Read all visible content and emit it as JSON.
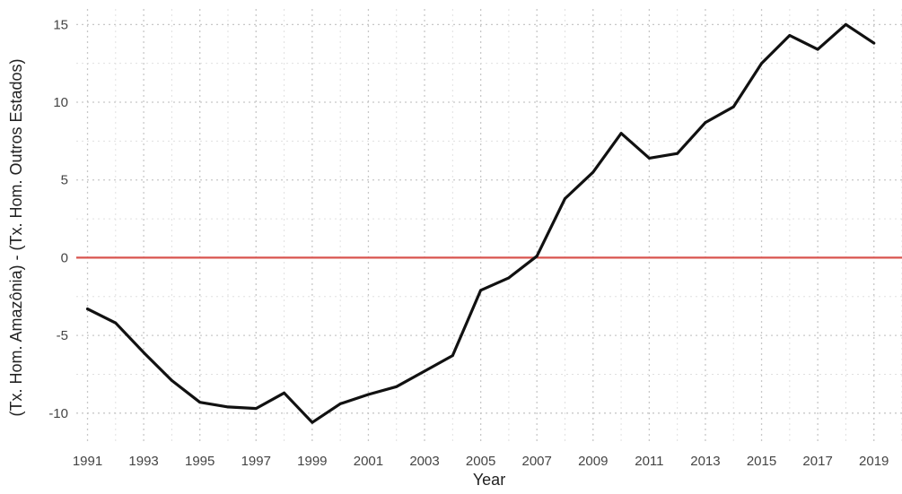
{
  "chart_data": {
    "type": "line",
    "title": "",
    "xlabel": "Year",
    "ylabel": "(Tx. Hom. Amazônia) - (Tx. Hom. Outros Estados)",
    "xlim": [
      1990.6,
      2020.0
    ],
    "ylim": [
      -11.8,
      16.0
    ],
    "x_ticks": [
      1991,
      1993,
      1995,
      1997,
      1999,
      2001,
      2003,
      2005,
      2007,
      2009,
      2011,
      2013,
      2015,
      2017,
      2019
    ],
    "y_ticks": [
      -10,
      -5,
      0,
      5,
      10,
      15
    ],
    "grid": true,
    "legend": "none",
    "series": [
      {
        "color": "#111111",
        "x": [
          1991,
          1992,
          1993,
          1994,
          1995,
          1996,
          1997,
          1998,
          1999,
          2000,
          2001,
          2002,
          2003,
          2004,
          2005,
          2006,
          2007,
          2008,
          2009,
          2010,
          2011,
          2012,
          2013,
          2014,
          2015,
          2016,
          2017,
          2018,
          2019
        ],
        "values": [
          -3.3,
          -4.2,
          -6.1,
          -7.9,
          -9.3,
          -9.6,
          -9.7,
          -8.7,
          -10.6,
          -9.4,
          -8.8,
          -8.3,
          -7.3,
          -6.3,
          -2.1,
          -1.3,
          0.1,
          3.8,
          5.5,
          8.0,
          6.4,
          6.7,
          8.7,
          9.7,
          12.5,
          14.3,
          13.4,
          15.0,
          13.8
        ]
      }
    ],
    "reference_line": {
      "y": 0,
      "color": "#d9544f"
    }
  }
}
